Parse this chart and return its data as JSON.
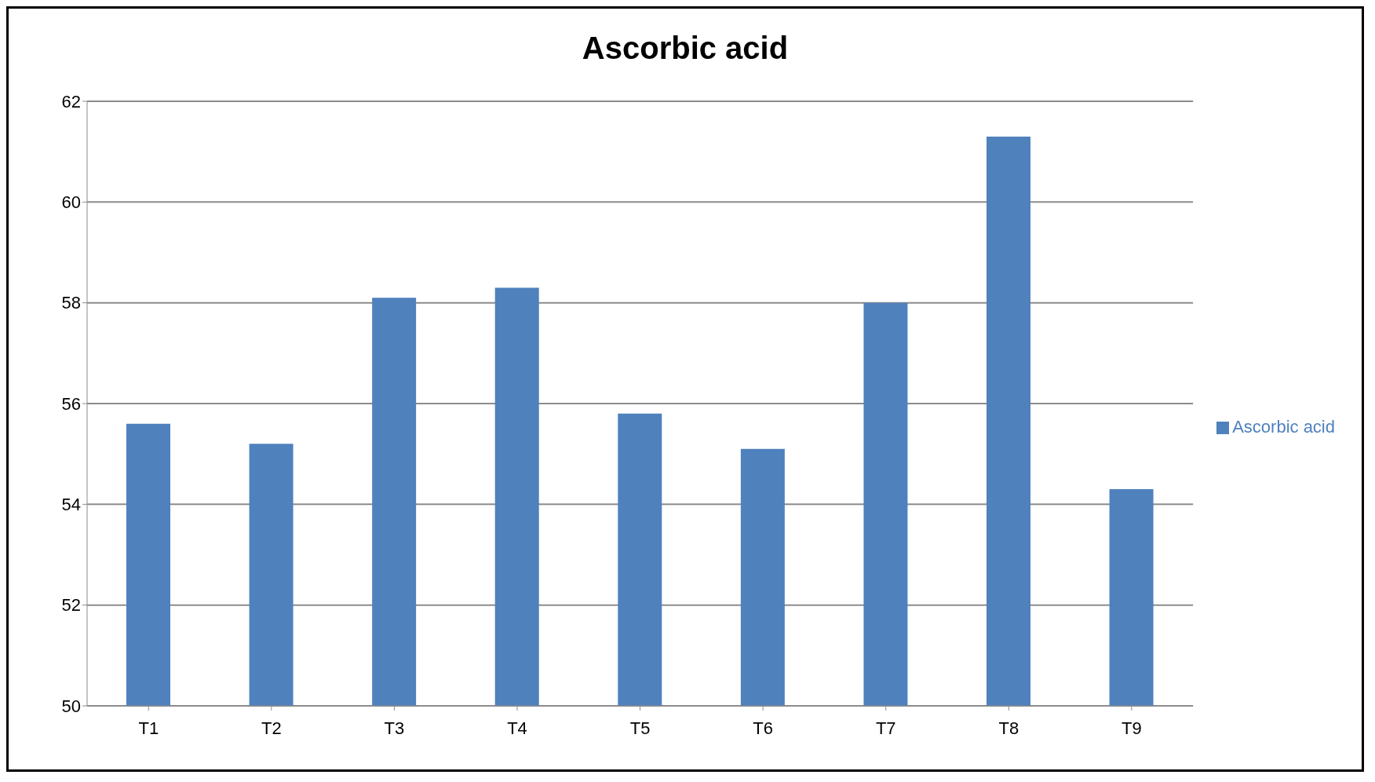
{
  "chart_data": {
    "type": "bar",
    "title": "Ascorbic acid",
    "categories": [
      "T1",
      "T2",
      "T3",
      "T4",
      "T5",
      "T6",
      "T7",
      "T8",
      "T9"
    ],
    "series": [
      {
        "name": "Ascorbic acid",
        "color": "#4f81bd",
        "values": [
          55.6,
          55.2,
          58.1,
          58.3,
          55.8,
          55.1,
          58.0,
          61.3,
          54.3
        ]
      }
    ],
    "ylim": [
      50,
      62
    ],
    "yticks": [
      50,
      52,
      54,
      56,
      58,
      60,
      62
    ],
    "grid": "y",
    "legend": "right"
  }
}
